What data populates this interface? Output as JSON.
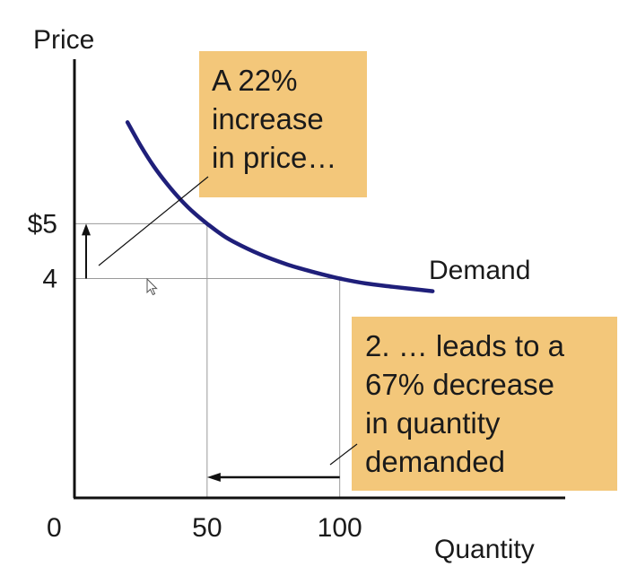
{
  "chart_data": {
    "type": "line",
    "ylabel": "Price",
    "xlabel": "Quantity",
    "series": [
      {
        "name": "Demand",
        "x": [
          20,
          25,
          30,
          35,
          40,
          45,
          50,
          55,
          60,
          70,
          80,
          90,
          100,
          110,
          120,
          135
        ],
        "y": [
          6.85,
          6.42,
          6.04,
          5.72,
          5.44,
          5.2,
          5.0,
          4.82,
          4.67,
          4.44,
          4.26,
          4.12,
          4.0,
          3.91,
          3.85,
          3.77
        ]
      }
    ],
    "x_ticks": [
      {
        "value": 0,
        "label": "0"
      },
      {
        "value": 50,
        "label": "50"
      },
      {
        "value": 100,
        "label": "100"
      }
    ],
    "y_ticks": [
      {
        "value": 5,
        "label": "$5"
      },
      {
        "value": 4,
        "label": "4"
      }
    ],
    "xlim": [
      0,
      185
    ],
    "ylim": [
      0,
      8
    ],
    "guides": {
      "points": [
        {
          "x": 50,
          "y": 5
        },
        {
          "x": 100,
          "y": 4
        }
      ]
    },
    "annotations": {
      "price_note": [
        "A  22%",
        "increase",
        "in price…"
      ],
      "quantity_note": [
        "2. … leads to a",
        "67% decrease",
        "in quantity",
        "demanded"
      ]
    },
    "colors": {
      "curve": "#1f1f7a",
      "note_fill": "#f3c77a",
      "guide": "#9a9a9a",
      "axis": "#111111"
    },
    "grid": false
  }
}
